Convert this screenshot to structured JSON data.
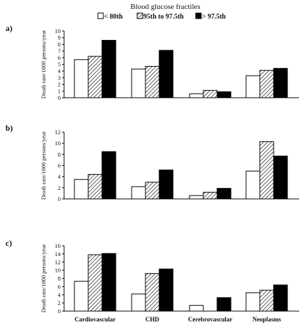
{
  "legend": {
    "title": "Blood glucose fractiles",
    "items": [
      {
        "label": "< 80th",
        "fill": "#ffffff"
      },
      {
        "label": "95th to 97.5th",
        "fill": "hatch"
      },
      {
        "label": "> 97.5th",
        "fill": "#000000"
      }
    ]
  },
  "chart_data": [
    {
      "panel_label": "a)",
      "type": "bar",
      "categories": [
        "Cardiovascular",
        "CHD",
        "Cerebrovascular",
        "Neoplasms"
      ],
      "series": [
        {
          "name": "< 80th",
          "values": [
            5.7,
            4.3,
            0.6,
            3.3
          ]
        },
        {
          "name": "95th to 97.5th",
          "values": [
            6.2,
            4.7,
            1.1,
            4.1
          ]
        },
        {
          "name": "> 97.5th",
          "values": [
            8.6,
            7.1,
            0.9,
            4.4
          ]
        }
      ],
      "ylabel": "Death rate/1000 persons/year",
      "ylim": [
        0,
        10
      ],
      "yticks": [
        0,
        1,
        2,
        3,
        4,
        5,
        6,
        7,
        8,
        9,
        10
      ],
      "show_xlabels": false,
      "grid": false
    },
    {
      "panel_label": "b)",
      "type": "bar",
      "categories": [
        "Cardiovascular",
        "CHD",
        "Cerebrovascular",
        "Neoplasms"
      ],
      "series": [
        {
          "name": "< 80th",
          "values": [
            3.5,
            2.2,
            0.6,
            5.0
          ]
        },
        {
          "name": "95th to 97.5th",
          "values": [
            4.4,
            3.0,
            1.2,
            10.3
          ]
        },
        {
          "name": "> 97.5th",
          "values": [
            8.5,
            5.2,
            1.9,
            7.7
          ]
        }
      ],
      "ylabel": "Death rate/1000 persons/year",
      "ylim": [
        0,
        12
      ],
      "yticks": [
        0,
        2,
        4,
        6,
        8,
        10,
        12
      ],
      "show_xlabels": false,
      "grid": false
    },
    {
      "panel_label": "c)",
      "type": "bar",
      "categories": [
        "Cardiovascular",
        "CHD",
        "Cerebrovascular",
        "Neoplasms"
      ],
      "series": [
        {
          "name": "< 80th",
          "values": [
            7.3,
            4.2,
            1.4,
            4.5
          ]
        },
        {
          "name": "95th to 97.5th",
          "values": [
            13.8,
            9.2,
            0,
            5.1
          ]
        },
        {
          "name": "> 97.5th",
          "values": [
            14.1,
            10.3,
            3.3,
            6.4
          ]
        }
      ],
      "ylabel": "Death rate/1000 persons/year",
      "ylim": [
        0,
        16
      ],
      "yticks": [
        0,
        2,
        4,
        6,
        8,
        10,
        12,
        14,
        16
      ],
      "show_xlabels": true,
      "grid": false
    }
  ]
}
